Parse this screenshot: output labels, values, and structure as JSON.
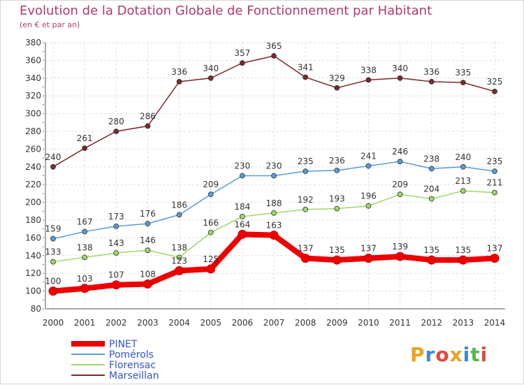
{
  "header": {
    "title": "Evolution de la Dotation Globale de Fonctionnement par Habitant",
    "subtitle": "(en € et par an)"
  },
  "logo": {
    "text": "Proxiti",
    "letter_colors": [
      "#f0a020",
      "#3a8ad6",
      "#e0483c",
      "#f0a020",
      "#3a8ad6",
      "#58b84a",
      "#e0483c"
    ]
  },
  "chart_data": {
    "type": "line",
    "title": "Evolution de la Dotation Globale de Fonctionnement par Habitant",
    "subtitle": "(en € et par an)",
    "xlabel": "",
    "ylabel": "",
    "x": [
      "2000",
      "2001",
      "2002",
      "2003",
      "2004",
      "2005",
      "2006",
      "2007",
      "2008",
      "2009",
      "2010",
      "2011",
      "2012",
      "2013",
      "2014"
    ],
    "ylim": [
      80,
      380
    ],
    "yticks": [
      80,
      100,
      120,
      140,
      160,
      180,
      200,
      220,
      240,
      260,
      280,
      300,
      320,
      340,
      360,
      380
    ],
    "grid": true,
    "legend_position": "bottom-left",
    "series": [
      {
        "name": "PINET",
        "color": "#ee0000",
        "thick": true,
        "values": [
          100,
          103,
          107,
          108,
          123,
          125,
          164,
          163,
          137,
          135,
          137,
          139,
          135,
          135,
          137
        ],
        "labels": [
          "100",
          "103",
          "107",
          "108",
          "123",
          "125",
          "164",
          "163",
          "137",
          "135",
          "137",
          "139",
          "135",
          "135",
          "137"
        ]
      },
      {
        "name": "Pomérols",
        "color": "#5b9bd5",
        "thick": false,
        "values": [
          159,
          167,
          173,
          176,
          186,
          209,
          230,
          230,
          235,
          236,
          241,
          246,
          238,
          240,
          235
        ],
        "labels": [
          "159",
          "167",
          "173",
          "176",
          "186",
          "209",
          "230",
          "230",
          "235",
          "236",
          "241",
          "246",
          "238",
          "240",
          "235"
        ]
      },
      {
        "name": "Florensac",
        "color": "#9bd86a",
        "thick": false,
        "values": [
          133,
          138,
          143,
          146,
          138,
          166,
          184,
          188,
          192,
          193,
          196,
          209,
          204,
          213,
          211
        ],
        "labels": [
          "133",
          "138",
          "143",
          "146",
          "138",
          "166",
          "184",
          "188",
          "192",
          "193",
          "196",
          "209",
          "204",
          "213",
          "211"
        ]
      },
      {
        "name": "Marseillan",
        "color": "#7a2a2a",
        "thick": false,
        "values": [
          240,
          261,
          280,
          286,
          336,
          340,
          357,
          365,
          341,
          329,
          338,
          340,
          336,
          335,
          325
        ],
        "labels": [
          "240",
          "261",
          "280",
          "286",
          "336",
          "340",
          "357",
          "365",
          "341",
          "329",
          "338",
          "340",
          "336",
          "335",
          "325"
        ]
      }
    ]
  }
}
